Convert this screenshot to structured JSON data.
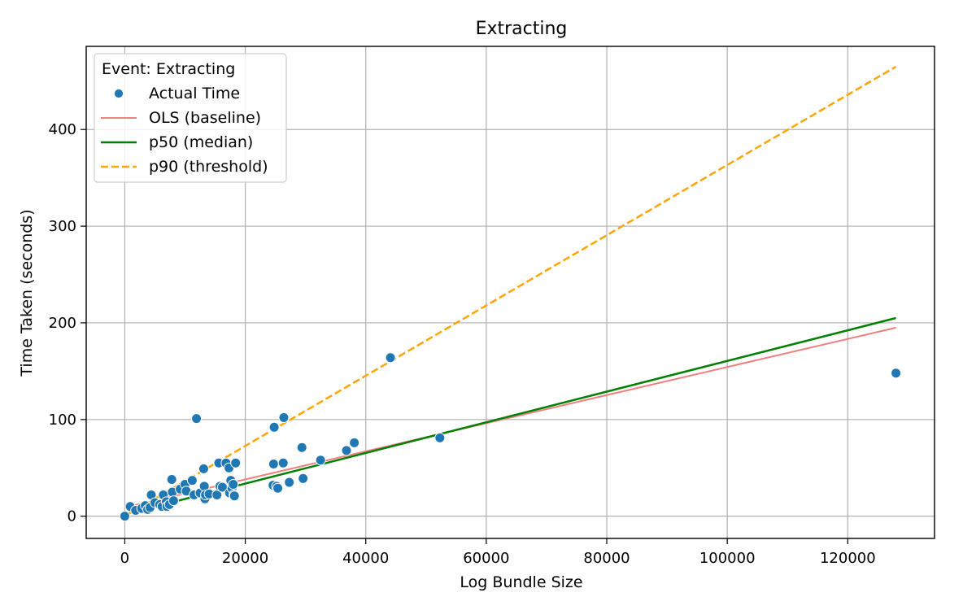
{
  "chart_data": {
    "type": "scatter",
    "title": "Extracting",
    "xlabel": "Log Bundle Size",
    "ylabel": "Time Taken (seconds)",
    "xlim": [
      -6400,
      134400
    ],
    "ylim": [
      -23,
      486
    ],
    "xticks": [
      0,
      20000,
      40000,
      60000,
      80000,
      100000,
      120000
    ],
    "yticks": [
      0,
      100,
      200,
      300,
      400
    ],
    "grid": true,
    "legend_placement": "top-left",
    "legend_title": "Event: Extracting",
    "colors": {
      "scatter": "#1f77b4",
      "ols": "#f08080",
      "p50": "#008000",
      "p90": "#ffa500"
    },
    "series": [
      {
        "name": "Actual Time",
        "kind": "scatter",
        "points": [
          [
            0,
            0
          ],
          [
            900,
            10
          ],
          [
            1800,
            6
          ],
          [
            2800,
            8
          ],
          [
            3400,
            11
          ],
          [
            3800,
            7
          ],
          [
            4200,
            9
          ],
          [
            4400,
            22
          ],
          [
            5000,
            14
          ],
          [
            5800,
            12
          ],
          [
            6200,
            10
          ],
          [
            6400,
            22
          ],
          [
            6900,
            15
          ],
          [
            7000,
            10
          ],
          [
            7400,
            12
          ],
          [
            7800,
            38
          ],
          [
            7900,
            25
          ],
          [
            8100,
            16
          ],
          [
            9200,
            28
          ],
          [
            10000,
            33
          ],
          [
            10200,
            26
          ],
          [
            11200,
            37
          ],
          [
            11500,
            22
          ],
          [
            11900,
            101
          ],
          [
            12500,
            24
          ],
          [
            13100,
            49
          ],
          [
            13200,
            31
          ],
          [
            13300,
            18
          ],
          [
            13400,
            22
          ],
          [
            14000,
            23
          ],
          [
            15300,
            22
          ],
          [
            15600,
            55
          ],
          [
            15800,
            31
          ],
          [
            16200,
            30
          ],
          [
            16800,
            55
          ],
          [
            17300,
            50
          ],
          [
            17400,
            24
          ],
          [
            17600,
            37
          ],
          [
            17800,
            29
          ],
          [
            18000,
            33
          ],
          [
            18100,
            22
          ],
          [
            18200,
            21
          ],
          [
            18400,
            55
          ],
          [
            24600,
            32
          ],
          [
            24700,
            54
          ],
          [
            24800,
            92
          ],
          [
            25200,
            31
          ],
          [
            25400,
            29
          ],
          [
            26300,
            55
          ],
          [
            26400,
            102
          ],
          [
            27300,
            35
          ],
          [
            29400,
            71
          ],
          [
            29600,
            39
          ],
          [
            32500,
            58
          ],
          [
            36800,
            68
          ],
          [
            38100,
            76
          ],
          [
            44100,
            164
          ],
          [
            52300,
            81
          ],
          [
            128000,
            148
          ]
        ]
      },
      {
        "name": "OLS (baseline)",
        "kind": "line",
        "x": [
          0,
          128000
        ],
        "y": [
          9,
          195
        ]
      },
      {
        "name": "p50 (median)",
        "kind": "line",
        "x": [
          0,
          128000
        ],
        "y": [
          2,
          205
        ]
      },
      {
        "name": "p90 (threshold)",
        "kind": "dashed-line",
        "x": [
          0,
          128000
        ],
        "y": [
          0,
          465
        ]
      }
    ]
  }
}
